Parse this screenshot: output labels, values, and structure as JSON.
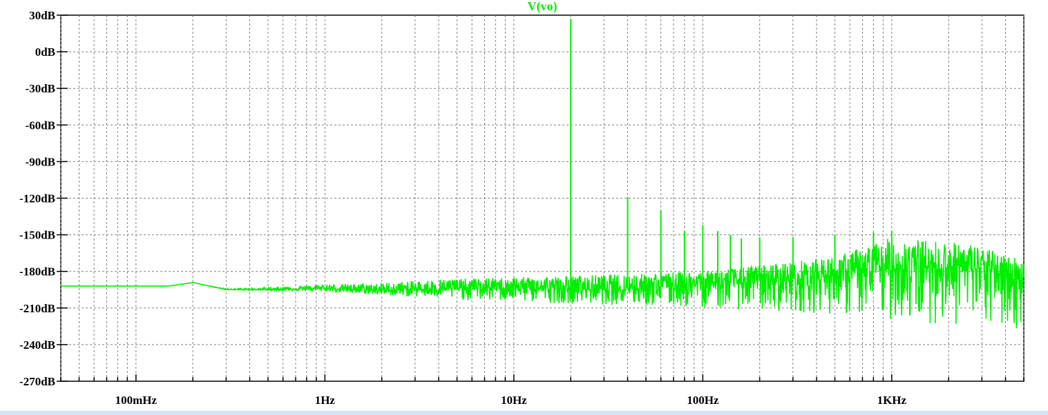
{
  "window": {
    "trace_label": "V(vo)"
  },
  "colors": {
    "trace": "#00ee00",
    "grid": "#808080",
    "axis": "#000000",
    "background": "#ffffff",
    "bottom_bar": "#d4e3f3"
  },
  "chart_data": {
    "type": "line",
    "title": "V(vo)",
    "xlabel": "",
    "ylabel": "",
    "x_scale": "log",
    "xlim": [
      0.04,
      5000
    ],
    "ylim": [
      -270,
      30
    ],
    "grid": true,
    "x_ticks": [
      {
        "value": 0.1,
        "label": "100mHz"
      },
      {
        "value": 1,
        "label": "1Hz"
      },
      {
        "value": 10,
        "label": "10Hz"
      },
      {
        "value": 100,
        "label": "100Hz"
      },
      {
        "value": 1000,
        "label": "1KHz"
      }
    ],
    "y_ticks": [
      {
        "value": 30,
        "label": "30dB"
      },
      {
        "value": 0,
        "label": "0dB"
      },
      {
        "value": -30,
        "label": "-30dB"
      },
      {
        "value": -60,
        "label": "-60dB"
      },
      {
        "value": -90,
        "label": "-90dB"
      },
      {
        "value": -120,
        "label": "-120dB"
      },
      {
        "value": -150,
        "label": "-150dB"
      },
      {
        "value": -180,
        "label": "-180dB"
      },
      {
        "value": -210,
        "label": "-210dB"
      },
      {
        "value": -240,
        "label": "-240dB"
      },
      {
        "value": -270,
        "label": "-270dB"
      }
    ],
    "series": [
      {
        "name": "V(vo)",
        "noise_floor": [
          {
            "x": 0.04,
            "y": -192
          },
          {
            "x": 0.15,
            "y": -192
          },
          {
            "x": 0.2,
            "y": -189
          },
          {
            "x": 0.3,
            "y": -195
          },
          {
            "x": 0.5,
            "y": -195
          },
          {
            "x": 1,
            "y": -194
          },
          {
            "x": 2,
            "y": -196
          },
          {
            "x": 5,
            "y": -194
          },
          {
            "x": 10,
            "y": -193
          },
          {
            "x": 20,
            "y": -195
          },
          {
            "x": 50,
            "y": -193
          },
          {
            "x": 100,
            "y": -190
          },
          {
            "x": 300,
            "y": -186
          },
          {
            "x": 1000,
            "y": -178
          },
          {
            "x": 2500,
            "y": -176
          },
          {
            "x": 5000,
            "y": -186
          }
        ],
        "noise_envelope": {
          "upper": [
            {
              "x": 0.04,
              "y": -192
            },
            {
              "x": 0.15,
              "y": -192
            },
            {
              "x": 1,
              "y": -188
            },
            {
              "x": 10,
              "y": -185
            },
            {
              "x": 100,
              "y": -180
            },
            {
              "x": 500,
              "y": -168
            },
            {
              "x": 1000,
              "y": -152
            },
            {
              "x": 2500,
              "y": -157
            },
            {
              "x": 5000,
              "y": -170
            }
          ],
          "lower": [
            {
              "x": 0.04,
              "y": -192
            },
            {
              "x": 0.15,
              "y": -192
            },
            {
              "x": 1,
              "y": -199
            },
            {
              "x": 10,
              "y": -205
            },
            {
              "x": 100,
              "y": -210
            },
            {
              "x": 500,
              "y": -215
            },
            {
              "x": 1000,
              "y": -220
            },
            {
              "x": 2500,
              "y": -225
            },
            {
              "x": 5000,
              "y": -228
            }
          ]
        },
        "peaks": [
          {
            "x": 20,
            "y": 27
          },
          {
            "x": 40,
            "y": -119
          },
          {
            "x": 60,
            "y": -130
          },
          {
            "x": 80,
            "y": -147
          },
          {
            "x": 100,
            "y": -142
          },
          {
            "x": 120,
            "y": -147
          },
          {
            "x": 140,
            "y": -150
          },
          {
            "x": 160,
            "y": -153
          },
          {
            "x": 200,
            "y": -152
          },
          {
            "x": 300,
            "y": -152
          },
          {
            "x": 500,
            "y": -150
          },
          {
            "x": 800,
            "y": -148
          },
          {
            "x": 1000,
            "y": -147
          }
        ]
      }
    ]
  }
}
